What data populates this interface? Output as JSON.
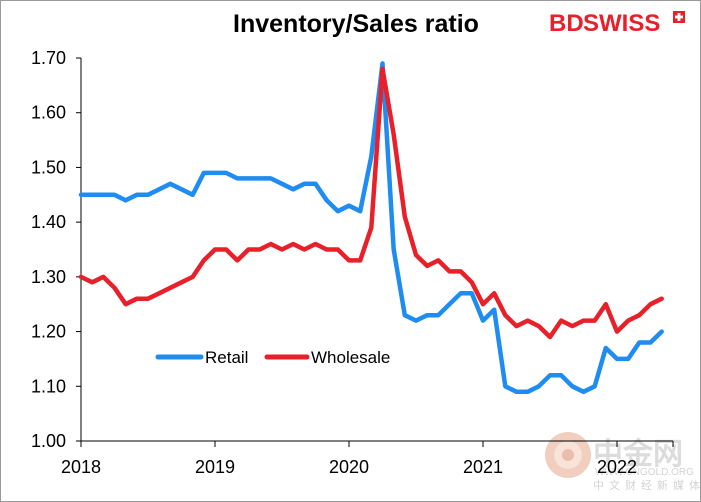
{
  "chart_data": {
    "type": "line",
    "title": "Inventory/Sales ratio",
    "xlabel": "",
    "ylabel": "",
    "ylim": [
      1.0,
      1.7
    ],
    "yticks": [
      "1.00",
      "1.10",
      "1.20",
      "1.30",
      "1.40",
      "1.50",
      "1.60",
      "1.70"
    ],
    "xticks": [
      "2018",
      "2019",
      "2020",
      "2021",
      "2022"
    ],
    "x_start": "2018-01",
    "legend_position": "center-left",
    "series": [
      {
        "name": "Retail",
        "color": "#1e8cf0",
        "values": [
          1.45,
          1.45,
          1.45,
          1.45,
          1.44,
          1.45,
          1.45,
          1.46,
          1.47,
          1.46,
          1.45,
          1.49,
          1.49,
          1.49,
          1.48,
          1.48,
          1.48,
          1.48,
          1.47,
          1.46,
          1.47,
          1.47,
          1.44,
          1.42,
          1.43,
          1.42,
          1.52,
          1.69,
          1.35,
          1.23,
          1.22,
          1.23,
          1.23,
          1.25,
          1.27,
          1.27,
          1.22,
          1.24,
          1.1,
          1.09,
          1.09,
          1.1,
          1.12,
          1.12,
          1.1,
          1.09,
          1.1,
          1.17,
          1.15,
          1.15,
          1.18,
          1.18,
          1.2
        ]
      },
      {
        "name": "Wholesale",
        "color": "#e8202a",
        "values": [
          1.3,
          1.29,
          1.3,
          1.28,
          1.25,
          1.26,
          1.26,
          1.27,
          1.28,
          1.29,
          1.3,
          1.33,
          1.35,
          1.35,
          1.33,
          1.35,
          1.35,
          1.36,
          1.35,
          1.36,
          1.35,
          1.36,
          1.35,
          1.35,
          1.33,
          1.33,
          1.39,
          1.68,
          1.56,
          1.41,
          1.34,
          1.32,
          1.33,
          1.31,
          1.31,
          1.29,
          1.25,
          1.27,
          1.23,
          1.21,
          1.22,
          1.21,
          1.19,
          1.22,
          1.21,
          1.22,
          1.22,
          1.25,
          1.2,
          1.22,
          1.23,
          1.25,
          1.26
        ]
      }
    ]
  },
  "branding": {
    "logo_text_bd": "BD",
    "logo_text_swiss": "SWISS",
    "logo_color": "#e8202a",
    "watermark_main": "中金网",
    "watermark_sub": "中文财经新媒体",
    "watermark_url": "WWW.CNGOLD.ORG"
  }
}
